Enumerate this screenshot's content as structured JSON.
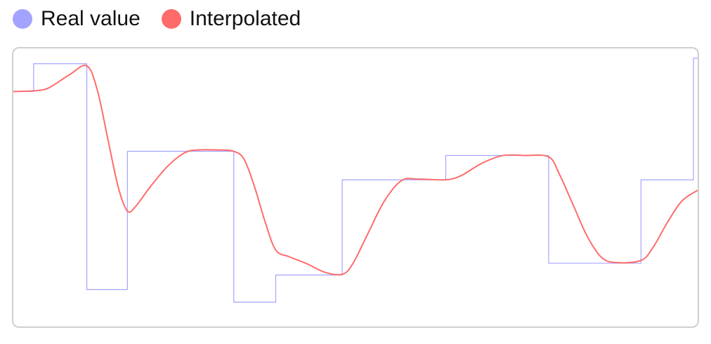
{
  "legend": [
    {
      "label": "Real value",
      "color": "#a3a3ff"
    },
    {
      "label": "Interpolated",
      "color": "#ff6b6b"
    }
  ],
  "chart_data": {
    "type": "line",
    "title": "",
    "xlabel": "",
    "ylabel": "",
    "grid": false,
    "legend_position": "top-left",
    "xlim": [
      0,
      978
    ],
    "ylim": [
      0,
      400
    ],
    "series": [
      {
        "name": "Real value",
        "color": "#a3a3ff",
        "step": true,
        "x": [
          0,
          29,
          105,
          163,
          315,
          375,
          470,
          618,
          765,
          897,
          972,
          978
        ],
        "values": [
          338,
          378,
          53,
          252,
          35,
          74,
          211,
          246,
          91,
          211,
          386,
          386
        ]
      },
      {
        "name": "Interpolated",
        "color": "#ff6b6b",
        "step": false,
        "x": [
          0,
          29,
          50,
          80,
          105,
          120,
          135,
          150,
          163,
          175,
          195,
          220,
          245,
          265,
          290,
          315,
          330,
          345,
          360,
          375,
          395,
          420,
          445,
          470,
          485,
          505,
          530,
          555,
          580,
          618,
          640,
          670,
          700,
          730,
          765,
          780,
          800,
          820,
          840,
          860,
          897,
          915,
          935,
          955,
          978
        ],
        "values": [
          338,
          339,
          343,
          362,
          375,
          340,
          270,
          200,
          166,
          173,
          200,
          230,
          250,
          254,
          254,
          252,
          240,
          200,
          150,
          110,
          100,
          90,
          78,
          75,
          90,
          130,
          180,
          210,
          212,
          211,
          217,
          235,
          246,
          246,
          244,
          220,
          175,
          130,
          100,
          92,
          95,
          115,
          150,
          180,
          196
        ]
      }
    ]
  }
}
